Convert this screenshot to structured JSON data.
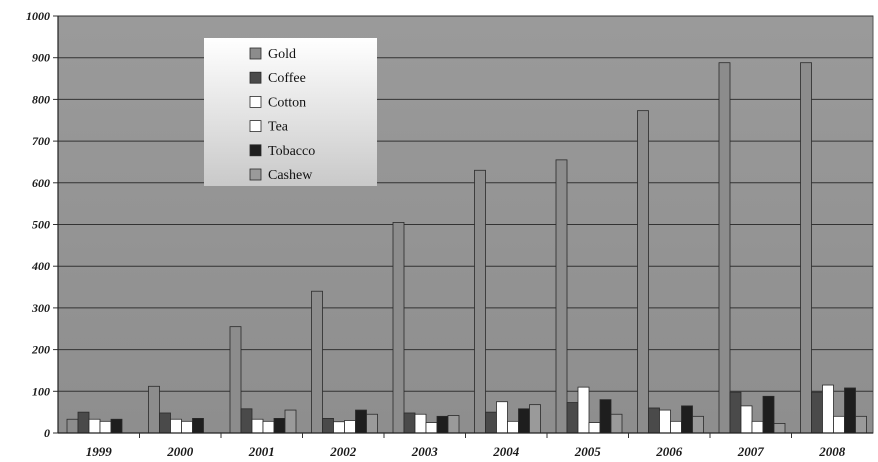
{
  "chart_data": {
    "type": "bar",
    "title": "",
    "xlabel": "",
    "ylabel": "",
    "ylim": [
      0,
      1000
    ],
    "yticks": [
      0,
      100,
      200,
      300,
      400,
      500,
      600,
      700,
      800,
      900,
      1000
    ],
    "grid": true,
    "legend_position": "top-left",
    "categories": [
      "1999",
      "2000",
      "2001",
      "2002",
      "2003",
      "2004",
      "2005",
      "2006",
      "2007",
      "2008"
    ],
    "series": [
      {
        "name": "Gold",
        "color": "#8c8c8c",
        "values": [
          33,
          112,
          255,
          340,
          505,
          630,
          655,
          773,
          888,
          888
        ]
      },
      {
        "name": "Coffee",
        "color": "#4a4a4a",
        "values": [
          50,
          48,
          58,
          35,
          48,
          50,
          73,
          60,
          98,
          98
        ]
      },
      {
        "name": "Cotton",
        "color": "#ffffff",
        "values": [
          33,
          33,
          33,
          27,
          45,
          75,
          110,
          55,
          65,
          115
        ]
      },
      {
        "name": "Tea",
        "color": "#ffffff",
        "values": [
          28,
          28,
          28,
          30,
          25,
          28,
          25,
          28,
          28,
          40
        ]
      },
      {
        "name": "Tobacco",
        "color": "#1e1e1e",
        "values": [
          33,
          35,
          35,
          55,
          40,
          58,
          80,
          65,
          88,
          108
        ]
      },
      {
        "name": "Cashew",
        "color": "#9a9a9a",
        "values": [
          0,
          0,
          55,
          45,
          42,
          68,
          45,
          40,
          23,
          40
        ]
      }
    ]
  }
}
